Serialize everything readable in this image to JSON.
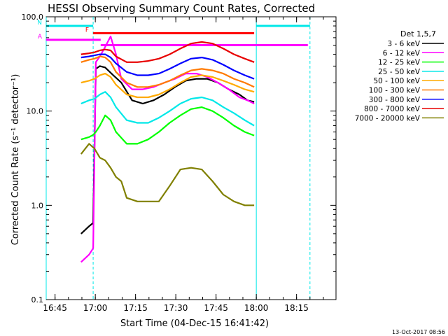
{
  "chart_data": {
    "type": "line",
    "title": "HESSI Observing Summary Count Rates, Corrected",
    "xlabel": "Start Time (04-Dec-15 16:41:42)",
    "ylabel": "Corrected Count Rate (s⁻¹ detector⁻¹)",
    "y_scale": "log",
    "ylim": [
      0.1,
      100
    ],
    "xlim_minutes": [
      0,
      108
    ],
    "ytick_labels": [
      "0.1",
      "1.0",
      "10.0",
      "100.0"
    ],
    "ytick_values": [
      0.1,
      1,
      10,
      100
    ],
    "xtick_labels": [
      "16:45",
      "17:00",
      "17:15",
      "17:30",
      "17:45",
      "18:00",
      "18:15"
    ],
    "xtick_values": [
      3.3,
      18.3,
      33.3,
      48.3,
      63.3,
      78.3,
      93.3
    ],
    "legend_title": "Det 1,5,7",
    "legend_placement": "right",
    "footer": "13-Oct-2017 08:56",
    "series": [
      {
        "name": "3 - 6 keV",
        "color": "#000000",
        "x": [
          13,
          16,
          17.5,
          18.5,
          20,
          22,
          25,
          28,
          32,
          36,
          40,
          44,
          48,
          52,
          56,
          60,
          64,
          68,
          72,
          75,
          77.5
        ],
        "y": [
          0.5,
          0.6,
          0.65,
          28,
          30,
          29,
          24,
          20,
          13,
          12,
          13,
          15,
          18,
          21,
          22,
          22,
          20,
          17,
          15,
          13,
          12.5
        ]
      },
      {
        "name": "6 - 12 keV",
        "color": "#ff00ff",
        "x": [
          13,
          16,
          17.5,
          18.5,
          20,
          22,
          24,
          26,
          28,
          32,
          36,
          40,
          44,
          48,
          52,
          56,
          60,
          64,
          68,
          72,
          75,
          77.5
        ],
        "y": [
          0.25,
          0.3,
          0.35,
          33,
          38,
          48,
          62,
          40,
          22,
          17,
          17,
          18,
          20,
          22,
          25,
          25,
          23,
          20,
          17,
          14,
          13,
          12
        ]
      },
      {
        "name": "12 - 25 keV",
        "color": "#00ff00",
        "x": [
          13,
          16,
          17.5,
          18.5,
          20,
          22,
          24,
          26,
          30,
          34,
          38,
          42,
          46,
          50,
          54,
          58,
          62,
          66,
          70,
          74,
          77.5
        ],
        "y": [
          5,
          5.3,
          5.6,
          6,
          7,
          9,
          8,
          6,
          4.5,
          4.5,
          5,
          6,
          7.5,
          9,
          10.5,
          11,
          10,
          8.5,
          7,
          6,
          5.5
        ]
      },
      {
        "name": "25 - 50 keV",
        "color": "#00e8e8",
        "x": [
          13,
          16,
          18,
          20,
          22,
          24,
          26,
          30,
          34,
          38,
          42,
          46,
          50,
          54,
          58,
          62,
          66,
          70,
          74,
          77.5
        ],
        "y": [
          12,
          13,
          13.5,
          15,
          16,
          14,
          11,
          8,
          7.5,
          7.5,
          8.5,
          10,
          12,
          13.5,
          14,
          13,
          11,
          9.5,
          8,
          7
        ]
      },
      {
        "name": "50 - 100 keV",
        "color": "#ffaa00",
        "x": [
          13,
          16,
          18,
          20,
          22,
          24,
          26,
          30,
          34,
          38,
          42,
          46,
          50,
          54,
          58,
          62,
          66,
          70,
          74,
          77.5
        ],
        "y": [
          20,
          21,
          22,
          24,
          25,
          23,
          19,
          15,
          14,
          14,
          15,
          17,
          20,
          23,
          24,
          23,
          21,
          19,
          17,
          16
        ]
      },
      {
        "name": "100 - 300 keV",
        "color": "#ff7a00",
        "x": [
          13,
          16,
          18,
          20,
          22,
          24,
          26,
          30,
          34,
          38,
          42,
          46,
          50,
          54,
          58,
          62,
          66,
          70,
          74,
          77.5
        ],
        "y": [
          33,
          35,
          36,
          38,
          37,
          33,
          26,
          20,
          18,
          18,
          19,
          21,
          24,
          27,
          28,
          27,
          25,
          22,
          20,
          18
        ]
      },
      {
        "name": "300 - 800 keV",
        "color": "#0000ff",
        "x": [
          13,
          16,
          18,
          20,
          22,
          24,
          26,
          30,
          34,
          38,
          42,
          46,
          50,
          54,
          58,
          62,
          66,
          70,
          74,
          77.5
        ],
        "y": [
          37,
          38,
          39,
          40,
          40,
          37,
          32,
          26,
          24,
          24,
          25,
          28,
          32,
          36,
          37,
          35,
          31,
          27,
          24,
          22
        ]
      },
      {
        "name": "800 - 7000 keV",
        "color": "#e80000",
        "x": [
          13,
          16,
          18,
          20,
          22,
          24,
          26,
          30,
          34,
          38,
          42,
          46,
          50,
          54,
          58,
          62,
          66,
          70,
          74,
          77.5
        ],
        "y": [
          40,
          41,
          42,
          44,
          45,
          44,
          38,
          33,
          33,
          34,
          36,
          40,
          46,
          52,
          54,
          52,
          46,
          40,
          36,
          33
        ]
      },
      {
        "name": "7000 - 20000 keV",
        "color": "#808000",
        "x": [
          13,
          16,
          18,
          20,
          22,
          24,
          26,
          28,
          30,
          34,
          38,
          42,
          46,
          50,
          54,
          58,
          62,
          66,
          70,
          74,
          77.5
        ],
        "y": [
          3.5,
          4.5,
          4,
          3.2,
          3,
          2.5,
          2,
          1.8,
          1.2,
          1.1,
          1.1,
          1.1,
          1.6,
          2.4,
          2.5,
          2.4,
          1.8,
          1.3,
          1.1,
          1,
          1
        ]
      }
    ],
    "annotations": [
      {
        "label": "N",
        "color": "#00e8e8",
        "x_start": 0,
        "x_end": 17.5,
        "y": 80
      },
      {
        "label": "",
        "color": "#00e8e8",
        "x_start": 78.3,
        "x_end": 98.3,
        "y": 80
      },
      {
        "label": "F",
        "color": "#ff0000",
        "x_start": 17.5,
        "x_end": 77.5,
        "y": 67
      },
      {
        "label": "A",
        "color": "#ff00ff",
        "x_start": 0,
        "x_end": 20.3,
        "y": 57
      },
      {
        "label": "",
        "color": "#ff00ff",
        "x_start": 20.3,
        "x_end": 97.5,
        "y": 50
      }
    ]
  }
}
